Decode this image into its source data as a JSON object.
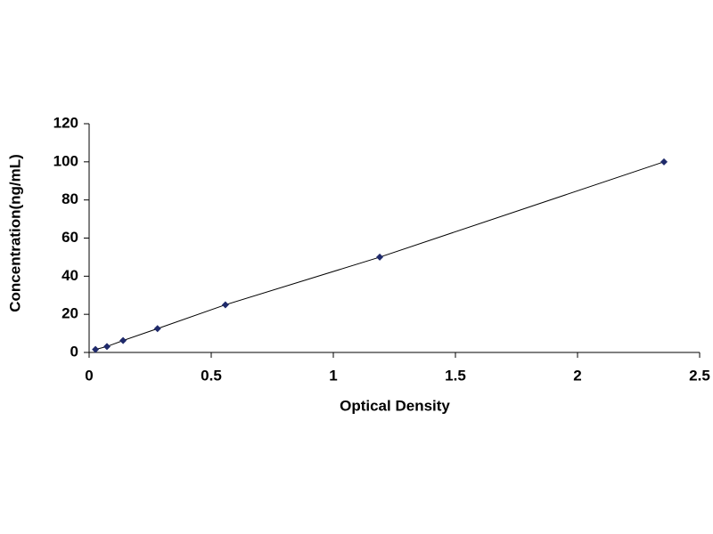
{
  "chart_data": {
    "type": "scatter",
    "x_label": "Optical Density",
    "y_label": "Concentration(ng/mL)",
    "series": [
      {
        "color": "#1f2a6b",
        "x": [
          0.026,
          0.073,
          0.139,
          0.28,
          0.558,
          1.19,
          2.354
        ],
        "values": [
          1.56,
          3.12,
          6.25,
          12.5,
          25,
          50,
          100
        ]
      }
    ],
    "line": true,
    "xlim": [
      0,
      2.5
    ],
    "xticks": [
      0,
      0.5,
      1,
      1.5,
      2,
      2.5
    ],
    "ylim": [
      0,
      120
    ],
    "yticks": [
      0,
      20,
      40,
      60,
      80,
      100,
      120
    ],
    "grid": false
  }
}
